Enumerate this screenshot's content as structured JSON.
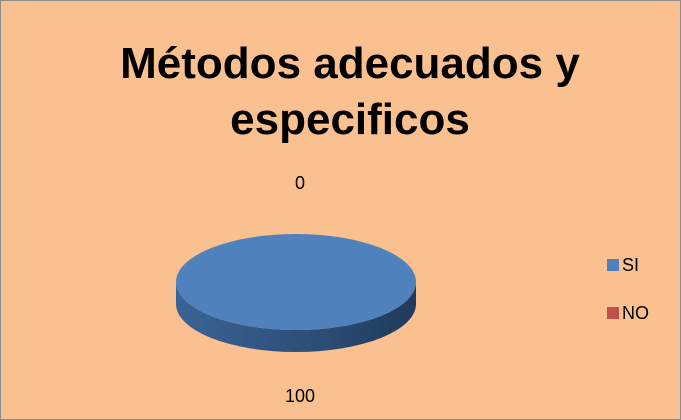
{
  "chart_data": {
    "type": "pie",
    "title": "Métodos adecuados y especificos",
    "categories": [
      "SI",
      "NO"
    ],
    "values": [
      100,
      0
    ],
    "colors": [
      "#4f81bd",
      "#c0504d"
    ],
    "legend": "right",
    "three_d": true
  }
}
